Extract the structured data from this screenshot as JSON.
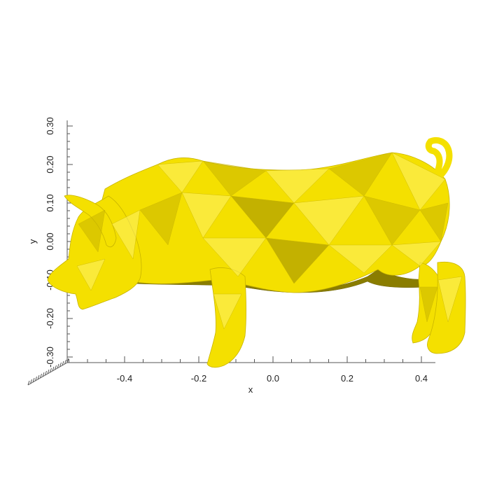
{
  "plot": {
    "x_axis": {
      "label": "x",
      "ticks": [
        "-0.4",
        "-0.2",
        "0.0",
        "0.2",
        "0.4"
      ]
    },
    "y_axis": {
      "label": "y",
      "ticks": [
        "-0.30",
        "-0.20",
        "-0.10",
        "0.00",
        "0.10",
        "0.20",
        "0.30"
      ]
    },
    "model": {
      "color": "#f4e000",
      "highlight": "#fff36a",
      "shade": "#c8b400",
      "dark": "#9a8a00"
    }
  }
}
